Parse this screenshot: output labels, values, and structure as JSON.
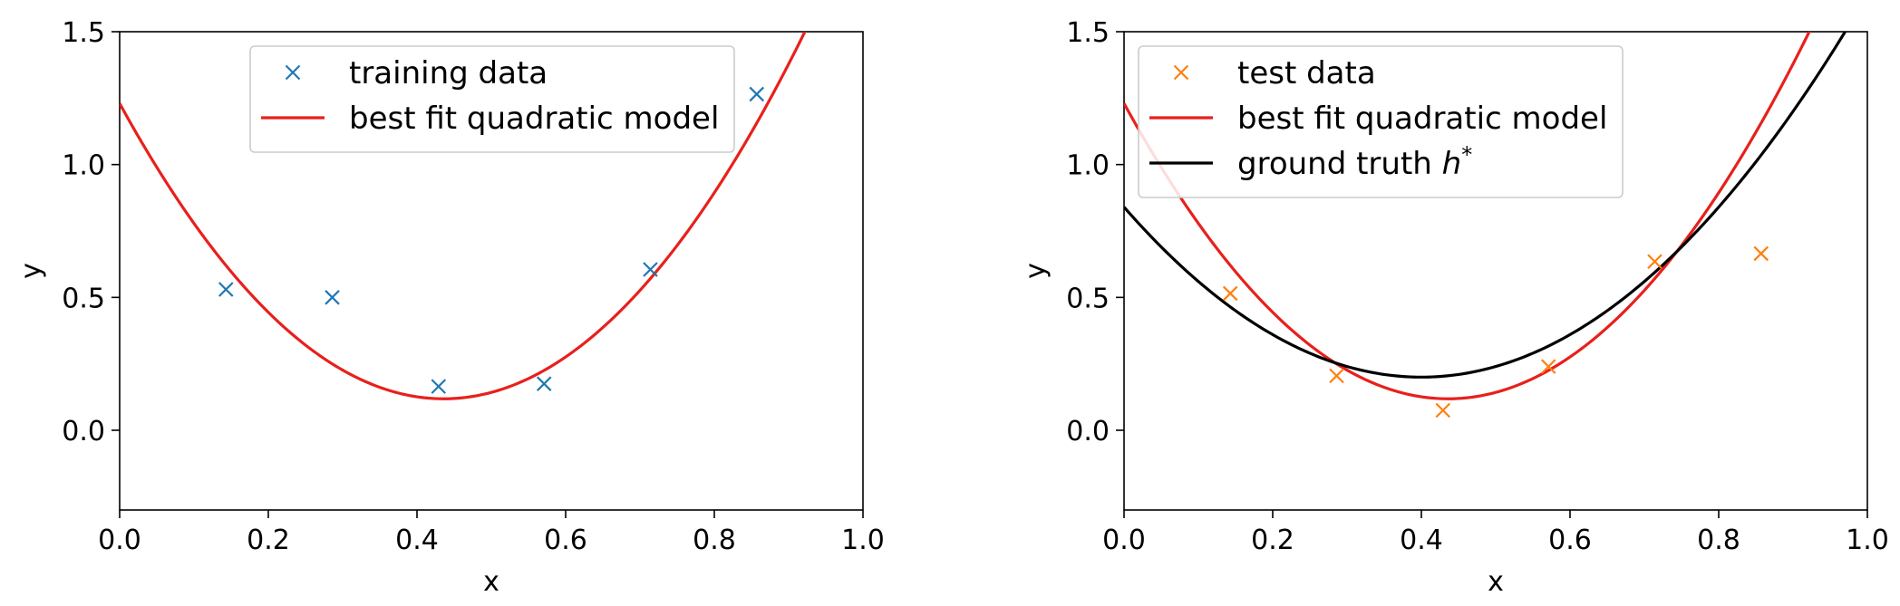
{
  "chart_data": [
    {
      "type": "line",
      "xlabel": "x",
      "ylabel": "y",
      "xlim": [
        0.0,
        1.0
      ],
      "ylim": [
        -0.3,
        1.5
      ],
      "xticks": [
        "0.0",
        "0.2",
        "0.4",
        "0.6",
        "0.8",
        "1.0"
      ],
      "yticks": [
        "0.0",
        "0.5",
        "1.0",
        "1.5"
      ],
      "legend_position": "top-center",
      "series": [
        {
          "name": "training data",
          "kind": "scatter",
          "marker": "x",
          "color": "#1f77b4",
          "x": [
            0.143,
            0.286,
            0.429,
            0.571,
            0.714,
            0.857
          ],
          "y": [
            0.53,
            0.5,
            0.165,
            0.175,
            0.605,
            1.265
          ]
        },
        {
          "name": "best fit quadratic model",
          "kind": "curve",
          "color": "#e8201c",
          "function": "quadratic",
          "coefficients": [
            5.85,
            -5.1,
            1.23
          ]
        }
      ]
    },
    {
      "type": "line",
      "xlabel": "x",
      "ylabel": "y",
      "xlim": [
        0.0,
        1.0
      ],
      "ylim": [
        -0.3,
        1.5
      ],
      "xticks": [
        "0.0",
        "0.2",
        "0.4",
        "0.6",
        "0.8",
        "1.0"
      ],
      "yticks": [
        "0.0",
        "0.5",
        "1.0",
        "1.5"
      ],
      "legend_position": "top-left",
      "series": [
        {
          "name": "test data",
          "kind": "scatter",
          "marker": "x",
          "color": "#ff7f0e",
          "x": [
            0.143,
            0.286,
            0.429,
            0.571,
            0.714,
            0.857
          ],
          "y": [
            0.515,
            0.205,
            0.075,
            0.24,
            0.635,
            0.665
          ]
        },
        {
          "name": "best fit quadratic model",
          "kind": "curve",
          "color": "#e8201c",
          "function": "quadratic",
          "coefficients": [
            5.85,
            -5.1,
            1.23
          ]
        },
        {
          "name": "ground truth h*",
          "kind": "curve",
          "color": "#000000",
          "function": "quadratic",
          "coefficients": [
            4.0,
            -3.2,
            0.84
          ]
        }
      ]
    }
  ]
}
